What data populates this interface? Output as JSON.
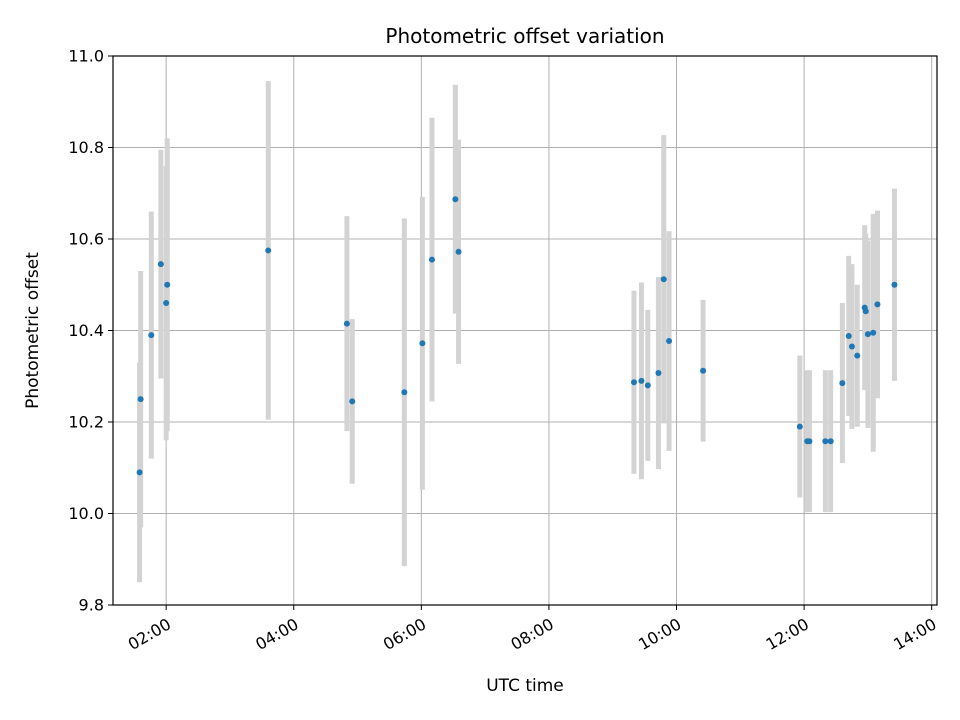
{
  "chart_data": {
    "type": "scatter",
    "title": "Photometric offset variation",
    "xlabel": "UTC time",
    "ylabel": "Photometric offset",
    "x_axis": "time",
    "xlim": [
      "01:10",
      "14:05"
    ],
    "ylim": [
      9.8,
      11.0
    ],
    "x_ticks": [
      "02:00",
      "04:00",
      "06:00",
      "08:00",
      "10:00",
      "12:00",
      "14:00"
    ],
    "y_ticks": [
      "9.8",
      "10.0",
      "10.2",
      "10.4",
      "10.6",
      "10.8",
      "11.0"
    ],
    "grid": true,
    "point_color": "#1f77b4",
    "errorbar_color": "#d3d3d3",
    "series": [
      {
        "points": [
          {
            "x": "01:35",
            "y": 10.09,
            "err": 0.24
          },
          {
            "x": "01:36",
            "y": 10.25,
            "err": 0.28
          },
          {
            "x": "01:46",
            "y": 10.39,
            "err": 0.27
          },
          {
            "x": "01:55",
            "y": 10.545,
            "err": 0.25
          },
          {
            "x": "02:00",
            "y": 10.46,
            "err": 0.3
          },
          {
            "x": "02:01",
            "y": 10.5,
            "err": 0.32
          },
          {
            "x": "03:36",
            "y": 10.575,
            "err": 0.37
          },
          {
            "x": "04:50",
            "y": 10.415,
            "err": 0.235
          },
          {
            "x": "04:55",
            "y": 10.245,
            "err": 0.18
          },
          {
            "x": "05:44",
            "y": 10.265,
            "err": 0.38
          },
          {
            "x": "06:01",
            "y": 10.372,
            "err": 0.32
          },
          {
            "x": "06:10",
            "y": 10.555,
            "err": 0.31
          },
          {
            "x": "06:32",
            "y": 10.687,
            "err": 0.25
          },
          {
            "x": "06:35",
            "y": 10.572,
            "err": 0.245
          },
          {
            "x": "09:20",
            "y": 10.287,
            "err": 0.2
          },
          {
            "x": "09:27",
            "y": 10.29,
            "err": 0.215
          },
          {
            "x": "09:33",
            "y": 10.28,
            "err": 0.165
          },
          {
            "x": "09:43",
            "y": 10.307,
            "err": 0.21
          },
          {
            "x": "09:48",
            "y": 10.512,
            "err": 0.315
          },
          {
            "x": "09:53",
            "y": 10.377,
            "err": 0.24
          },
          {
            "x": "10:25",
            "y": 10.312,
            "err": 0.155
          },
          {
            "x": "11:56",
            "y": 10.19,
            "err": 0.155
          },
          {
            "x": "12:03",
            "y": 10.158,
            "err": 0.155
          },
          {
            "x": "12:05",
            "y": 10.158,
            "err": 0.155
          },
          {
            "x": "12:20",
            "y": 10.158,
            "err": 0.155
          },
          {
            "x": "12:25",
            "y": 10.158,
            "err": 0.155
          },
          {
            "x": "12:36",
            "y": 10.285,
            "err": 0.175
          },
          {
            "x": "12:42",
            "y": 10.388,
            "err": 0.175
          },
          {
            "x": "12:45",
            "y": 10.365,
            "err": 0.18
          },
          {
            "x": "12:50",
            "y": 10.345,
            "err": 0.155
          },
          {
            "x": "12:57",
            "y": 10.45,
            "err": 0.18
          },
          {
            "x": "12:58",
            "y": 10.442,
            "err": 0.17
          },
          {
            "x": "13:00",
            "y": 10.392,
            "err": 0.205
          },
          {
            "x": "13:05",
            "y": 10.395,
            "err": 0.26
          },
          {
            "x": "13:09",
            "y": 10.457,
            "err": 0.205
          },
          {
            "x": "13:25",
            "y": 10.5,
            "err": 0.21
          }
        ]
      }
    ]
  }
}
